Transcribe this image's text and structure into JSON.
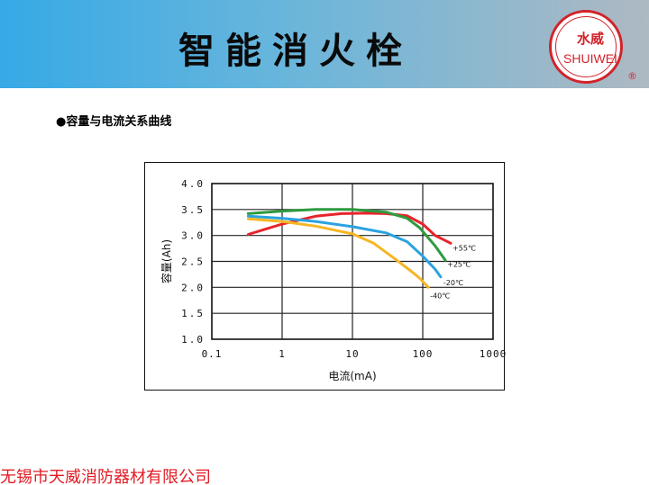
{
  "header": {
    "title": "智能消火栓",
    "logo": {
      "cn": "水威",
      "en": "SHUIWEI",
      "reg": "®"
    }
  },
  "subtitle": "●容量与电流关系曲线",
  "footer": "无锡市天威消防器材有限公司",
  "colors": {
    "header_start": "#36a9e6",
    "header_end": "#aeb9c2",
    "brand_red": "#d2232a",
    "footer_red": "#e21b23"
  },
  "chart_data": {
    "type": "line",
    "title": "",
    "xlabel": "电流(mA)",
    "ylabel": "容量(Ah)",
    "xscale": "log",
    "xlim": [
      0.1,
      1000
    ],
    "ylim": [
      1.0,
      4.0
    ],
    "x_ticks": [
      0.1,
      1,
      10,
      100,
      1000
    ],
    "x_tick_labels": [
      "0.1",
      "1",
      "10",
      "100",
      "1000"
    ],
    "y_ticks": [
      4.0,
      3.5,
      3.0,
      2.5,
      2.0,
      1.5,
      1.0
    ],
    "y_tick_labels": [
      "4.0",
      "3.5",
      "3.0",
      "2.5",
      "2.0",
      "1.5",
      "1.0"
    ],
    "grid": true,
    "legend": "inline labels at line ends",
    "series": [
      {
        "name": "+55℃",
        "color": "#e8242b",
        "points": [
          [
            0.33,
            3.02
          ],
          [
            1,
            3.22
          ],
          [
            3,
            3.37
          ],
          [
            7,
            3.42
          ],
          [
            15,
            3.43
          ],
          [
            30,
            3.42
          ],
          [
            60,
            3.38
          ],
          [
            100,
            3.22
          ],
          [
            150,
            3.0
          ],
          [
            250,
            2.85
          ]
        ]
      },
      {
        "name": "+25℃",
        "color": "#2e9b3e",
        "points": [
          [
            0.33,
            3.42
          ],
          [
            1,
            3.47
          ],
          [
            3,
            3.5
          ],
          [
            10,
            3.5
          ],
          [
            30,
            3.45
          ],
          [
            60,
            3.33
          ],
          [
            90,
            3.15
          ],
          [
            150,
            2.8
          ],
          [
            210,
            2.52
          ]
        ]
      },
      {
        "name": "-20℃",
        "color": "#2aa3e0",
        "points": [
          [
            0.33,
            3.37
          ],
          [
            1,
            3.33
          ],
          [
            3,
            3.27
          ],
          [
            10,
            3.17
          ],
          [
            30,
            3.05
          ],
          [
            60,
            2.88
          ],
          [
            100,
            2.6
          ],
          [
            150,
            2.35
          ],
          [
            180,
            2.2
          ]
        ]
      },
      {
        "name": "-40℃",
        "color": "#f6b623",
        "points": [
          [
            0.33,
            3.32
          ],
          [
            1,
            3.27
          ],
          [
            3,
            3.18
          ],
          [
            10,
            3.03
          ],
          [
            20,
            2.85
          ],
          [
            40,
            2.55
          ],
          [
            70,
            2.3
          ],
          [
            90,
            2.18
          ],
          [
            120,
            2.0
          ]
        ]
      }
    ]
  }
}
